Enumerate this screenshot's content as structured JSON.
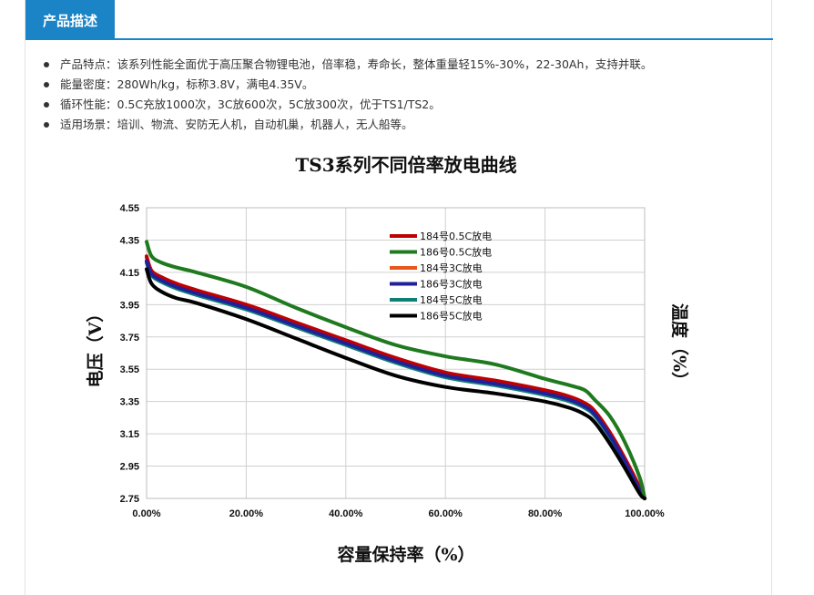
{
  "tab": {
    "label": "产品描述"
  },
  "features": [
    "产品特点：该系列性能全面优于高压聚合物锂电池，倍率稳，寿命长，整体重量轻15%-30%，22-30Ah，支持并联。",
    "能量密度：280Wh/kg，标称3.8V，满电4.35V。",
    "循环性能：0.5C充放1000次，3C放600次，5C放300次，优于TS1/TS2。",
    "适用场景：培训、物流、安防无人机，自动机巢，机器人，无人船等。"
  ],
  "chart_data": {
    "type": "line",
    "title": "TS3系列不同倍率放电曲线",
    "xlabel": "容量保持率（%）",
    "ylabel": "电压（V）",
    "y2label": "温度（%）",
    "xlim": [
      0,
      100
    ],
    "ylim": [
      2.75,
      4.55
    ],
    "xticks": [
      "0.00%",
      "20.00%",
      "40.00%",
      "60.00%",
      "80.00%",
      "100.00%"
    ],
    "yticks": [
      "2.75",
      "2.95",
      "3.15",
      "3.35",
      "3.55",
      "3.75",
      "3.95",
      "4.15",
      "4.35",
      "4.55"
    ],
    "grid": true,
    "legend_position": "top-center",
    "series": [
      {
        "name": "184号0.5C放电",
        "color": "#c00000",
        "x": [
          0,
          1,
          3,
          6,
          10,
          20,
          30,
          40,
          50,
          60,
          70,
          80,
          85,
          88,
          90,
          93,
          96,
          99,
          100
        ],
        "y": [
          4.25,
          4.16,
          4.12,
          4.08,
          4.04,
          3.95,
          3.84,
          3.73,
          3.62,
          3.53,
          3.48,
          3.42,
          3.38,
          3.34,
          3.29,
          3.16,
          3.0,
          2.82,
          2.75
        ]
      },
      {
        "name": "186号0.5C放电",
        "color": "#1f7a1f",
        "x": [
          0,
          1,
          3,
          6,
          10,
          20,
          30,
          40,
          50,
          60,
          70,
          80,
          85,
          88,
          90,
          93,
          96,
          99,
          100
        ],
        "y": [
          4.34,
          4.25,
          4.21,
          4.18,
          4.15,
          4.06,
          3.93,
          3.81,
          3.7,
          3.63,
          3.58,
          3.49,
          3.45,
          3.42,
          3.36,
          3.26,
          3.1,
          2.88,
          2.75
        ]
      },
      {
        "name": "184号3C放电",
        "color": "#e8561c",
        "x": [
          0,
          1,
          3,
          6,
          10,
          20,
          30,
          40,
          50,
          60,
          70,
          80,
          85,
          88,
          90,
          93,
          96,
          99,
          100
        ],
        "y": [
          4.24,
          4.15,
          4.11,
          4.07,
          4.03,
          3.94,
          3.83,
          3.72,
          3.61,
          3.52,
          3.47,
          3.41,
          3.37,
          3.33,
          3.28,
          3.15,
          2.99,
          2.81,
          2.75
        ]
      },
      {
        "name": "186号3C放电",
        "color": "#20209a",
        "x": [
          0,
          1,
          3,
          6,
          10,
          20,
          30,
          40,
          50,
          60,
          70,
          80,
          85,
          88,
          90,
          93,
          96,
          99,
          100
        ],
        "y": [
          4.22,
          4.14,
          4.1,
          4.06,
          4.02,
          3.93,
          3.82,
          3.71,
          3.6,
          3.51,
          3.46,
          3.4,
          3.36,
          3.32,
          3.27,
          3.14,
          2.98,
          2.8,
          2.75
        ]
      },
      {
        "name": "184号5C放电",
        "color": "#0f7f73",
        "x": [
          0,
          1,
          3,
          6,
          10,
          20,
          30,
          40,
          50,
          60,
          70,
          80,
          85,
          88,
          90,
          93,
          96,
          99,
          100
        ],
        "y": [
          4.21,
          4.13,
          4.09,
          4.05,
          4.01,
          3.92,
          3.81,
          3.7,
          3.59,
          3.5,
          3.45,
          3.39,
          3.35,
          3.31,
          3.26,
          3.13,
          2.97,
          2.79,
          2.75
        ]
      },
      {
        "name": "186号5C放电",
        "color": "#000000",
        "x": [
          0,
          1,
          3,
          6,
          10,
          20,
          30,
          40,
          50,
          60,
          70,
          80,
          85,
          88,
          90,
          93,
          96,
          99,
          100
        ],
        "y": [
          4.17,
          4.08,
          4.03,
          3.99,
          3.96,
          3.86,
          3.74,
          3.62,
          3.51,
          3.44,
          3.4,
          3.35,
          3.31,
          3.27,
          3.22,
          3.09,
          2.94,
          2.78,
          2.75
        ]
      }
    ]
  }
}
